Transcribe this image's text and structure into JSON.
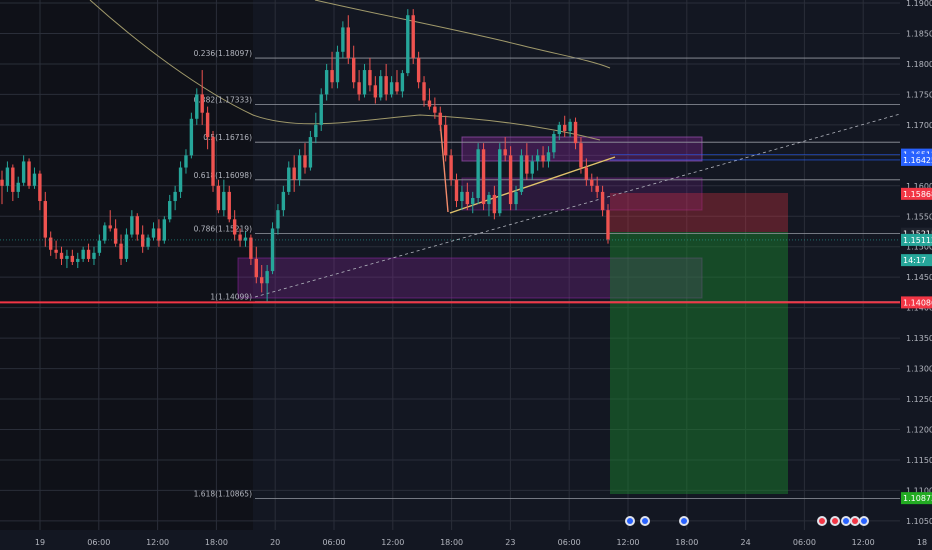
{
  "chart_data": {
    "type": "candlestick",
    "price_axis": {
      "ylim": [
        1.1035,
        1.1905
      ],
      "ticks": [
        "1.19000",
        "1.18500",
        "1.18000",
        "1.17500",
        "1.17000",
        "1.16500",
        "1.16000",
        "1.15500",
        "1.15000",
        "1.14500",
        "1.14000",
        "1.13500",
        "1.13000",
        "1.12500",
        "1.12000",
        "1.11500",
        "1.11000",
        "1.10500"
      ]
    },
    "time_axis": {
      "labels": [
        "19",
        "06:00",
        "12:00",
        "18:00",
        "20",
        "06:00",
        "12:00",
        "18:00",
        "23",
        "06:00",
        "12:00",
        "18:00",
        "24",
        "06:00",
        "12:00",
        "18"
      ]
    },
    "fib_levels": [
      {
        "label": "0.236(1.18097)",
        "price": 1.18097
      },
      {
        "label": "0.382(1.17333)",
        "price": 1.17333
      },
      {
        "label": "0.5(1.16716)",
        "price": 1.16716
      },
      {
        "label": "0.618(1.16098)",
        "price": 1.16098
      },
      {
        "label": "0.786(1.15219)",
        "price": 1.15219
      },
      {
        "label": "1(1.14099)",
        "price": 1.14099
      },
      {
        "label": "1.618(1.10865)",
        "price": 1.10865
      }
    ],
    "price_tags": [
      {
        "label": "1.16512",
        "price": 1.16512,
        "color": "#2962ff"
      },
      {
        "label": "1.16425",
        "price": 1.16425,
        "color": "#2962ff"
      },
      {
        "label": "1.15868",
        "price": 1.15868,
        "color": "#f23645"
      },
      {
        "label": "1.15215",
        "price": 1.15215,
        "color": "#1e222d"
      },
      {
        "label": "1.15112",
        "price": 1.15112,
        "color": "#26a69a"
      },
      {
        "label": "14:17",
        "price": 1.1478,
        "color": "#26a69a"
      },
      {
        "label": "1.14086",
        "price": 1.14086,
        "color": "#f23645"
      },
      {
        "label": "1.10873",
        "price": 1.10873,
        "color": "#22ab22"
      }
    ],
    "ohlc": [
      [
        1.161,
        1.1625,
        1.157,
        1.16
      ],
      [
        1.16,
        1.164,
        1.159,
        1.163
      ],
      [
        1.163,
        1.1635,
        1.1575,
        1.159
      ],
      [
        1.159,
        1.1615,
        1.158,
        1.1605
      ],
      [
        1.1605,
        1.165,
        1.16,
        1.164
      ],
      [
        1.164,
        1.1645,
        1.1595,
        1.16
      ],
      [
        1.16,
        1.163,
        1.1595,
        1.162
      ],
      [
        1.162,
        1.1625,
        1.156,
        1.1575
      ],
      [
        1.1575,
        1.159,
        1.15,
        1.1515
      ],
      [
        1.1515,
        1.1525,
        1.1485,
        1.1495
      ],
      [
        1.1495,
        1.151,
        1.148,
        1.149
      ],
      [
        1.149,
        1.15,
        1.147,
        1.148
      ],
      [
        1.148,
        1.1495,
        1.1465,
        1.1485
      ],
      [
        1.1485,
        1.1495,
        1.147,
        1.1475
      ],
      [
        1.1475,
        1.149,
        1.1465,
        1.148
      ],
      [
        1.148,
        1.15,
        1.1475,
        1.1495
      ],
      [
        1.1495,
        1.1505,
        1.1475,
        1.148
      ],
      [
        1.148,
        1.15,
        1.147,
        1.149
      ],
      [
        1.149,
        1.152,
        1.1485,
        1.151
      ],
      [
        1.151,
        1.154,
        1.1505,
        1.1535
      ],
      [
        1.1535,
        1.156,
        1.1525,
        1.153
      ],
      [
        1.153,
        1.1545,
        1.15,
        1.1505
      ],
      [
        1.1505,
        1.152,
        1.147,
        1.148
      ],
      [
        1.148,
        1.153,
        1.1475,
        1.152
      ],
      [
        1.152,
        1.156,
        1.1515,
        1.155
      ],
      [
        1.155,
        1.1555,
        1.151,
        1.152
      ],
      [
        1.152,
        1.1535,
        1.149,
        1.15
      ],
      [
        1.15,
        1.152,
        1.1495,
        1.1515
      ],
      [
        1.1515,
        1.154,
        1.151,
        1.153
      ],
      [
        1.153,
        1.1545,
        1.15,
        1.151
      ],
      [
        1.151,
        1.155,
        1.1505,
        1.1545
      ],
      [
        1.1545,
        1.1585,
        1.154,
        1.1575
      ],
      [
        1.1575,
        1.16,
        1.156,
        1.159
      ],
      [
        1.159,
        1.164,
        1.158,
        1.163
      ],
      [
        1.163,
        1.166,
        1.162,
        1.165
      ],
      [
        1.165,
        1.172,
        1.1645,
        1.171
      ],
      [
        1.171,
        1.176,
        1.17,
        1.175
      ],
      [
        1.175,
        1.179,
        1.17,
        1.172
      ],
      [
        1.172,
        1.173,
        1.166,
        1.168
      ],
      [
        1.168,
        1.169,
        1.159,
        1.16
      ],
      [
        1.16,
        1.161,
        1.1555,
        1.156
      ],
      [
        1.156,
        1.161,
        1.155,
        1.159
      ],
      [
        1.159,
        1.16,
        1.154,
        1.1545
      ],
      [
        1.1545,
        1.156,
        1.151,
        1.152
      ],
      [
        1.152,
        1.153,
        1.15,
        1.151
      ],
      [
        1.151,
        1.1525,
        1.15,
        1.1515
      ],
      [
        1.1515,
        1.152,
        1.147,
        1.148
      ],
      [
        1.148,
        1.15,
        1.144,
        1.145
      ],
      [
        1.145,
        1.147,
        1.1425,
        1.144
      ],
      [
        1.144,
        1.147,
        1.141,
        1.146
      ],
      [
        1.146,
        1.154,
        1.1455,
        1.153
      ],
      [
        1.153,
        1.157,
        1.152,
        1.156
      ],
      [
        1.156,
        1.16,
        1.155,
        1.159
      ],
      [
        1.159,
        1.164,
        1.1585,
        1.163
      ],
      [
        1.163,
        1.165,
        1.159,
        1.161
      ],
      [
        1.161,
        1.166,
        1.16,
        1.165
      ],
      [
        1.165,
        1.167,
        1.162,
        1.163
      ],
      [
        1.163,
        1.169,
        1.1625,
        1.168
      ],
      [
        1.168,
        1.172,
        1.167,
        1.17
      ],
      [
        1.17,
        1.176,
        1.169,
        1.175
      ],
      [
        1.175,
        1.18,
        1.174,
        1.179
      ],
      [
        1.179,
        1.182,
        1.176,
        1.177
      ],
      [
        1.177,
        1.183,
        1.176,
        1.182
      ],
      [
        1.182,
        1.187,
        1.181,
        1.186
      ],
      [
        1.186,
        1.188,
        1.18,
        1.181
      ],
      [
        1.181,
        1.183,
        1.176,
        1.177
      ],
      [
        1.177,
        1.179,
        1.174,
        1.175
      ],
      [
        1.175,
        1.18,
        1.1745,
        1.179
      ],
      [
        1.179,
        1.181,
        1.1755,
        1.1765
      ],
      [
        1.1765,
        1.178,
        1.1735,
        1.1745
      ],
      [
        1.1745,
        1.179,
        1.174,
        1.178
      ],
      [
        1.178,
        1.18,
        1.174,
        1.175
      ],
      [
        1.175,
        1.178,
        1.1745,
        1.177
      ],
      [
        1.177,
        1.179,
        1.175,
        1.1755
      ],
      [
        1.1755,
        1.179,
        1.1745,
        1.1785
      ],
      [
        1.1785,
        1.189,
        1.178,
        1.188
      ],
      [
        1.188,
        1.189,
        1.18,
        1.181
      ],
      [
        1.181,
        1.182,
        1.176,
        1.177
      ],
      [
        1.177,
        1.178,
        1.173,
        1.174
      ],
      [
        1.174,
        1.176,
        1.1725,
        1.173
      ],
      [
        1.173,
        1.1745,
        1.171,
        1.172
      ],
      [
        1.172,
        1.173,
        1.169,
        1.17
      ],
      [
        1.17,
        1.1715,
        1.164,
        1.165
      ],
      [
        1.165,
        1.166,
        1.16,
        1.161
      ],
      [
        1.161,
        1.162,
        1.1565,
        1.1575
      ],
      [
        1.1575,
        1.16,
        1.156,
        1.159
      ],
      [
        1.159,
        1.1605,
        1.156,
        1.157
      ],
      [
        1.157,
        1.159,
        1.1555,
        1.158
      ],
      [
        1.158,
        1.167,
        1.157,
        1.166
      ],
      [
        1.166,
        1.167,
        1.156,
        1.157
      ],
      [
        1.157,
        1.159,
        1.155,
        1.1585
      ],
      [
        1.1585,
        1.16,
        1.1545,
        1.1555
      ],
      [
        1.1555,
        1.167,
        1.155,
        1.166
      ],
      [
        1.166,
        1.168,
        1.164,
        1.165
      ],
      [
        1.165,
        1.1665,
        1.156,
        1.157
      ],
      [
        1.157,
        1.16,
        1.156,
        1.159
      ],
      [
        1.159,
        1.166,
        1.1585,
        1.165
      ],
      [
        1.165,
        1.167,
        1.161,
        1.162
      ],
      [
        1.162,
        1.165,
        1.161,
        1.164
      ],
      [
        1.164,
        1.166,
        1.1625,
        1.165
      ],
      [
        1.165,
        1.1665,
        1.163,
        1.164
      ],
      [
        1.164,
        1.1665,
        1.163,
        1.1655
      ],
      [
        1.1655,
        1.169,
        1.1645,
        1.1685
      ],
      [
        1.1685,
        1.1705,
        1.1675,
        1.17
      ],
      [
        1.17,
        1.1715,
        1.168,
        1.169
      ],
      [
        1.169,
        1.171,
        1.168,
        1.1705
      ],
      [
        1.1705,
        1.1712,
        1.166,
        1.167
      ],
      [
        1.167,
        1.168,
        1.162,
        1.163
      ],
      [
        1.163,
        1.1645,
        1.16,
        1.161
      ],
      [
        1.161,
        1.162,
        1.159,
        1.16
      ],
      [
        1.16,
        1.1615,
        1.158,
        1.159
      ],
      [
        1.159,
        1.16,
        1.155,
        1.156
      ],
      [
        1.156,
        1.157,
        1.1505,
        1.1512
      ]
    ]
  }
}
